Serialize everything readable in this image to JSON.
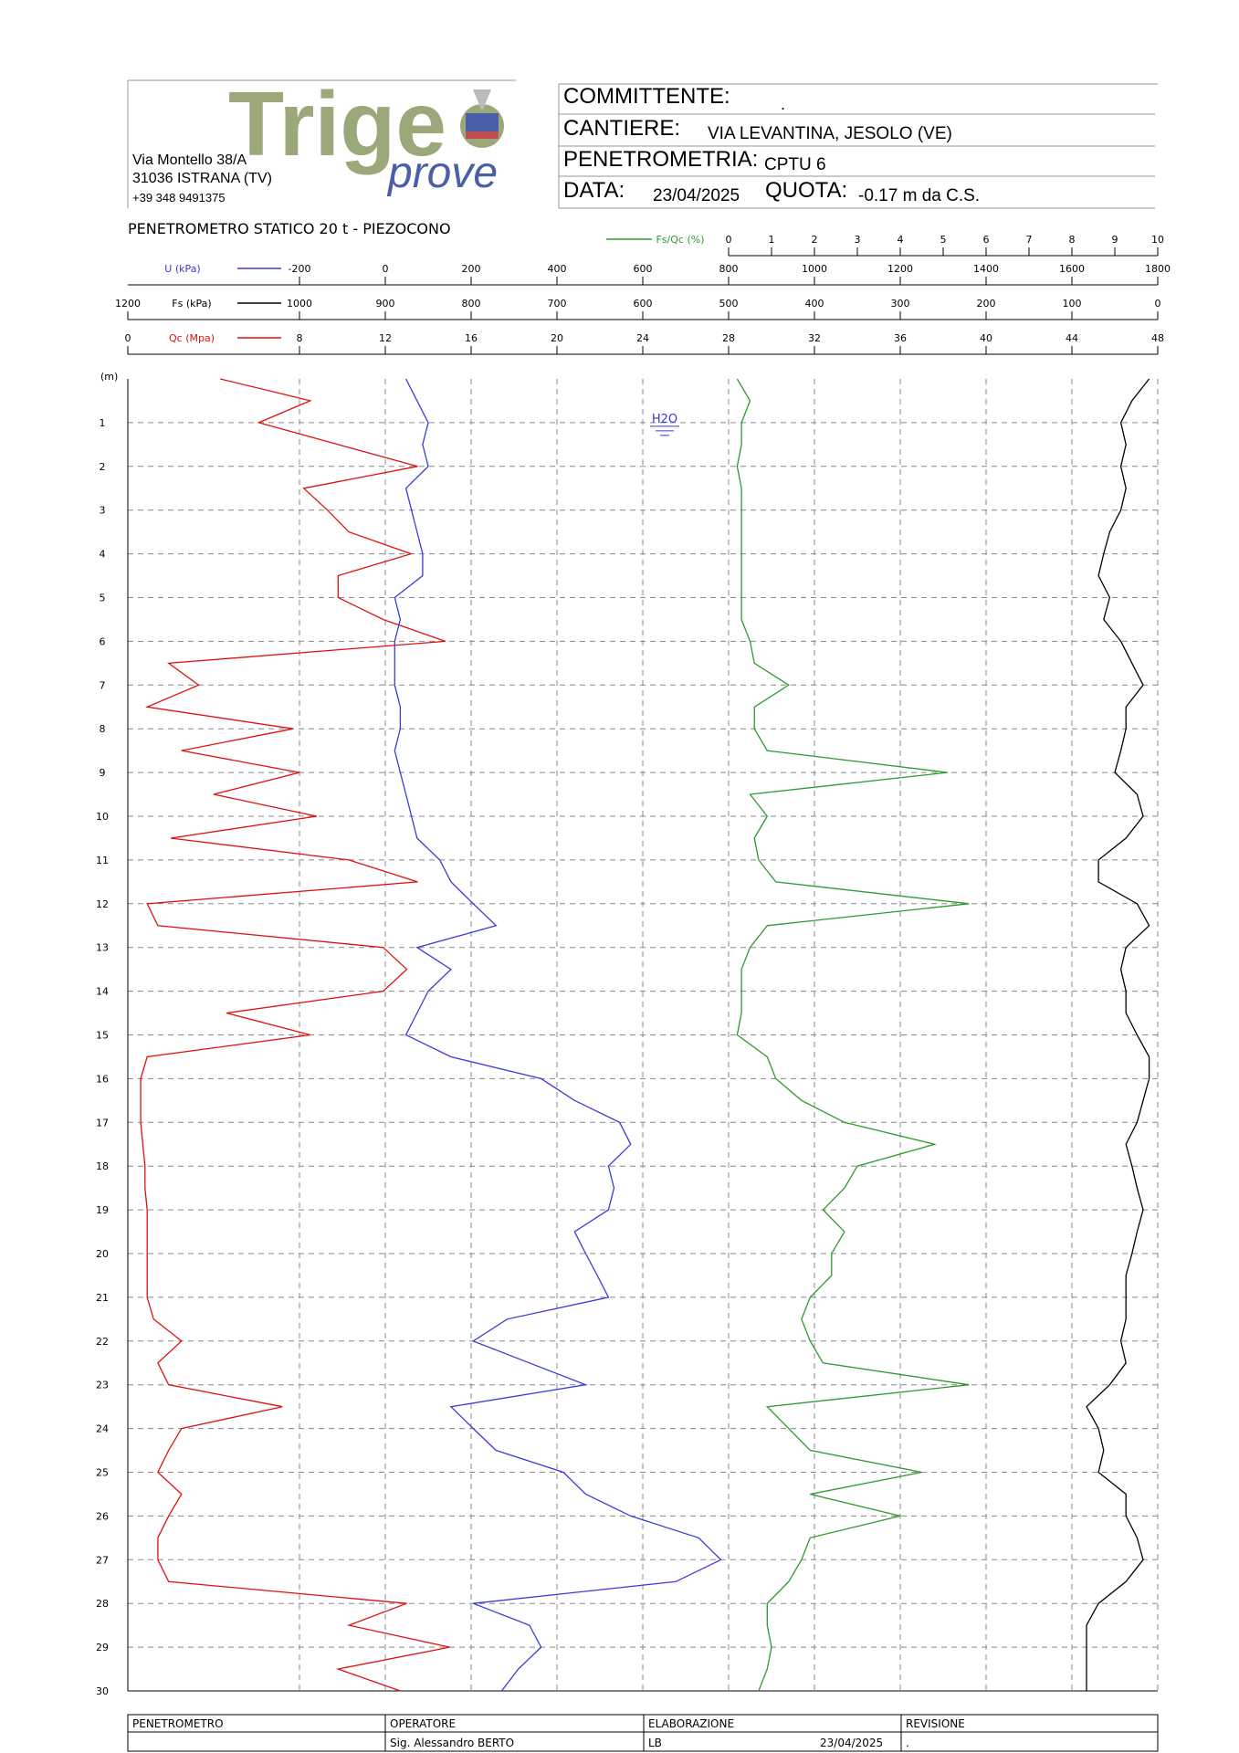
{
  "header": {
    "logo": "Trige",
    "logo_sub": "prove",
    "address": [
      "Via Montello 38/A",
      "31036 ISTRANA (TV)",
      "+39 348 9491375"
    ],
    "fields": [
      {
        "label": "COMMITTENTE:",
        "value": "."
      },
      {
        "label": "CANTIERE:",
        "value": "VIA LEVANTINA, JESOLO (VE)"
      },
      {
        "label": "PENETROMETRIA:",
        "value": "CPTU 6"
      },
      {
        "label": "DATA:",
        "value": "23/04/2025"
      },
      {
        "label": "QUOTA:",
        "value": "-0.17 m da C.S."
      }
    ]
  },
  "chart_data": {
    "type": "line",
    "title": "PENETROMETRO STATICO 20 t - PIEZOCONO",
    "depth_label": "(m)",
    "ylim": [
      0,
      30
    ],
    "yticks": [
      1,
      2,
      3,
      4,
      5,
      6,
      7,
      8,
      9,
      10,
      11,
      12,
      13,
      14,
      15,
      16,
      17,
      18,
      19,
      20,
      21,
      22,
      23,
      24,
      25,
      26,
      27,
      28,
      29,
      30
    ],
    "grid": true,
    "depths": [
      0,
      0.5,
      1,
      1.5,
      2,
      2.5,
      3,
      3.5,
      4,
      4.5,
      5,
      5.5,
      6,
      6.5,
      7,
      7.5,
      8,
      8.5,
      9,
      9.5,
      10,
      10.5,
      11,
      11.5,
      12,
      12.5,
      13,
      13.5,
      14,
      14.5,
      15,
      15.5,
      16,
      16.5,
      17,
      17.5,
      18,
      18.5,
      19,
      19.5,
      20,
      20.5,
      21,
      21.5,
      22,
      22.5,
      23,
      23.5,
      24,
      24.5,
      25,
      25.5,
      26,
      26.5,
      27,
      27.5,
      28,
      28.5,
      29,
      29.5,
      30
    ],
    "axes": {
      "fsqc": {
        "xlim": [
          0,
          10
        ],
        "xticks": [
          0,
          1,
          2,
          3,
          4,
          5,
          6,
          7,
          8,
          9,
          10
        ]
      },
      "u": {
        "xlim": [
          -600,
          1800
        ],
        "xticks": [
          -200,
          0,
          200,
          400,
          600,
          800,
          1000,
          1200,
          1400,
          1600,
          1800
        ]
      },
      "fs": {
        "xlim": [
          1200,
          0
        ],
        "xticks": [
          1200,
          1000,
          900,
          800,
          700,
          600,
          500,
          400,
          300,
          200,
          100,
          0
        ]
      },
      "qc": {
        "xlim": [
          0,
          48
        ],
        "xticks": [
          0,
          8,
          12,
          16,
          20,
          24,
          28,
          32,
          36,
          40,
          44,
          48
        ]
      }
    },
    "series": [
      {
        "name": "Qc (Mpa)",
        "color": "#e01010",
        "axis": "qc",
        "values": [
          4.3,
          8.5,
          6.1,
          9.8,
          13.5,
          8.2,
          9.3,
          10.3,
          13.2,
          9.8,
          9.8,
          11.9,
          14.8,
          1.9,
          3.3,
          0.9,
          7.7,
          2.5,
          8,
          4,
          8.8,
          2,
          10.3,
          13.5,
          0.9,
          1.4,
          11.9,
          13,
          11.9,
          4.6,
          8.5,
          0.9,
          0.6,
          0.6,
          0.6,
          0.7,
          0.8,
          0.8,
          0.9,
          0.9,
          0.9,
          0.9,
          0.9,
          1.2,
          2.5,
          1.4,
          1.9,
          7.2,
          2.5,
          1.9,
          1.4,
          2.5,
          1.9,
          1.4,
          1.4,
          1.9,
          13,
          10.3,
          15,
          9.8,
          12.7
        ]
      },
      {
        "name": "Fs (kPa)",
        "color": "#000000",
        "axis": "fs",
        "values": [
          10,
          30,
          43,
          37,
          43,
          37,
          43,
          56,
          63,
          69,
          56,
          63,
          43,
          30,
          17,
          37,
          37,
          43,
          50,
          24,
          17,
          37,
          69,
          69,
          24,
          10,
          37,
          43,
          37,
          37,
          24,
          10,
          10,
          17,
          24,
          37,
          30,
          24,
          17,
          24,
          30,
          37,
          37,
          37,
          43,
          37,
          56,
          83,
          69,
          63,
          69,
          37,
          37,
          24,
          17,
          37,
          69,
          83,
          83,
          83,
          83
        ]
      },
      {
        "name": "U (kPa)",
        "color": "#3a3adc",
        "axis": "u",
        "values": [
          48,
          74,
          100,
          87,
          100,
          48,
          61,
          74,
          87,
          87,
          22,
          35,
          22,
          22,
          22,
          35,
          35,
          22,
          35,
          48,
          61,
          74,
          127,
          153,
          205,
          258,
          74,
          153,
          100,
          74,
          48,
          153,
          363,
          441,
          546,
          572,
          520,
          533,
          520,
          441,
          467,
          494,
          520,
          284,
          205,
          336,
          467,
          153,
          205,
          258,
          415,
          467,
          572,
          730,
          782,
          677,
          205,
          336,
          363,
          310,
          271
        ]
      },
      {
        "name": "Fs/Qc (%)",
        "color": "#2e9a2e",
        "axis": "fsqc",
        "values": [
          0.2,
          0.5,
          0.3,
          0.3,
          0.2,
          0.3,
          0.3,
          0.3,
          0.3,
          0.3,
          0.3,
          0.3,
          0.5,
          0.6,
          1.4,
          0.6,
          0.6,
          0.9,
          5.1,
          0.5,
          0.9,
          0.6,
          0.7,
          1.1,
          5.6,
          0.9,
          0.5,
          0.3,
          0.3,
          0.3,
          0.2,
          0.9,
          1.1,
          1.7,
          2.7,
          4.8,
          3.0,
          2.7,
          2.2,
          2.7,
          2.4,
          2.4,
          1.9,
          1.7,
          1.9,
          2.2,
          5.6,
          0.9,
          1.4,
          1.9,
          4.5,
          1.9,
          4.0,
          1.9,
          1.7,
          1.4,
          0.9,
          0.9,
          1.0,
          0.9,
          0.7
        ]
      }
    ],
    "annotations": [
      {
        "text": "H2O",
        "depth": 1
      }
    ]
  },
  "footer": {
    "headers": [
      "PENETROMETRO",
      "OPERATORE",
      "ELABORAZIONE",
      "REVISIONE"
    ],
    "operator": "Sig. Alessandro BERTO",
    "elaboration": "LB",
    "date": "23/04/2025",
    "revision": "."
  }
}
